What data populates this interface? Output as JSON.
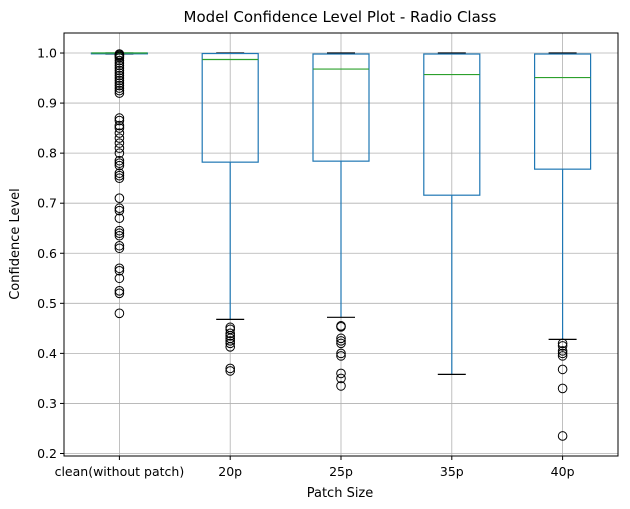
{
  "chart_data": {
    "type": "boxplot",
    "title": "Model Confidence Level Plot - Radio Class",
    "xlabel": "Patch Size",
    "ylabel": "Confidence Level",
    "ylim": [
      0.195,
      1.04
    ],
    "yticks": [
      0.2,
      0.3,
      0.4,
      0.5,
      0.6,
      0.7,
      0.8,
      0.9,
      1.0
    ],
    "ytick_labels": [
      "0.2",
      "0.3",
      "0.4",
      "0.5",
      "0.6",
      "0.7",
      "0.8",
      "0.9",
      "1.0"
    ],
    "grid": true,
    "colors": {
      "box": "#1f77b4",
      "median": "#2ca02c",
      "whisker": "#1f77b4",
      "cap": "#000000",
      "flier": "#000000",
      "grid": "#b0b0b0"
    },
    "categories": [
      "clean(without patch)",
      "20p",
      "25p",
      "35p",
      "40p"
    ],
    "boxes": [
      {
        "category": "clean(without patch)",
        "whislo": 0.998,
        "q1": 0.999,
        "median": 1.0,
        "q3": 1.0,
        "whishi": 1.0,
        "fliers": [
          0.998,
          0.997,
          0.995,
          0.993,
          0.99,
          0.985,
          0.98,
          0.975,
          0.97,
          0.965,
          0.96,
          0.955,
          0.95,
          0.945,
          0.94,
          0.935,
          0.93,
          0.925,
          0.92,
          0.87,
          0.865,
          0.855,
          0.85,
          0.84,
          0.83,
          0.82,
          0.81,
          0.8,
          0.785,
          0.78,
          0.775,
          0.76,
          0.755,
          0.75,
          0.71,
          0.69,
          0.685,
          0.67,
          0.645,
          0.64,
          0.635,
          0.615,
          0.61,
          0.57,
          0.565,
          0.55,
          0.525,
          0.52,
          0.48
        ]
      },
      {
        "category": "20p",
        "whislo": 0.468,
        "q1": 0.782,
        "median": 0.987,
        "q3": 0.999,
        "whishi": 1.0,
        "fliers": [
          0.452,
          0.448,
          0.44,
          0.435,
          0.43,
          0.425,
          0.42,
          0.413,
          0.37,
          0.365
        ]
      },
      {
        "category": "25p",
        "whislo": 0.472,
        "q1": 0.784,
        "median": 0.968,
        "q3": 0.998,
        "whishi": 1.0,
        "fliers": [
          0.455,
          0.453,
          0.43,
          0.425,
          0.42,
          0.4,
          0.395,
          0.36,
          0.35,
          0.335
        ]
      },
      {
        "category": "35p",
        "whislo": 0.358,
        "q1": 0.716,
        "median": 0.957,
        "q3": 0.998,
        "whishi": 1.0,
        "fliers": []
      },
      {
        "category": "40p",
        "whislo": 0.428,
        "q1": 0.768,
        "median": 0.951,
        "q3": 0.998,
        "whishi": 1.0,
        "fliers": [
          0.42,
          0.415,
          0.405,
          0.4,
          0.395,
          0.368,
          0.33,
          0.235
        ]
      }
    ]
  }
}
